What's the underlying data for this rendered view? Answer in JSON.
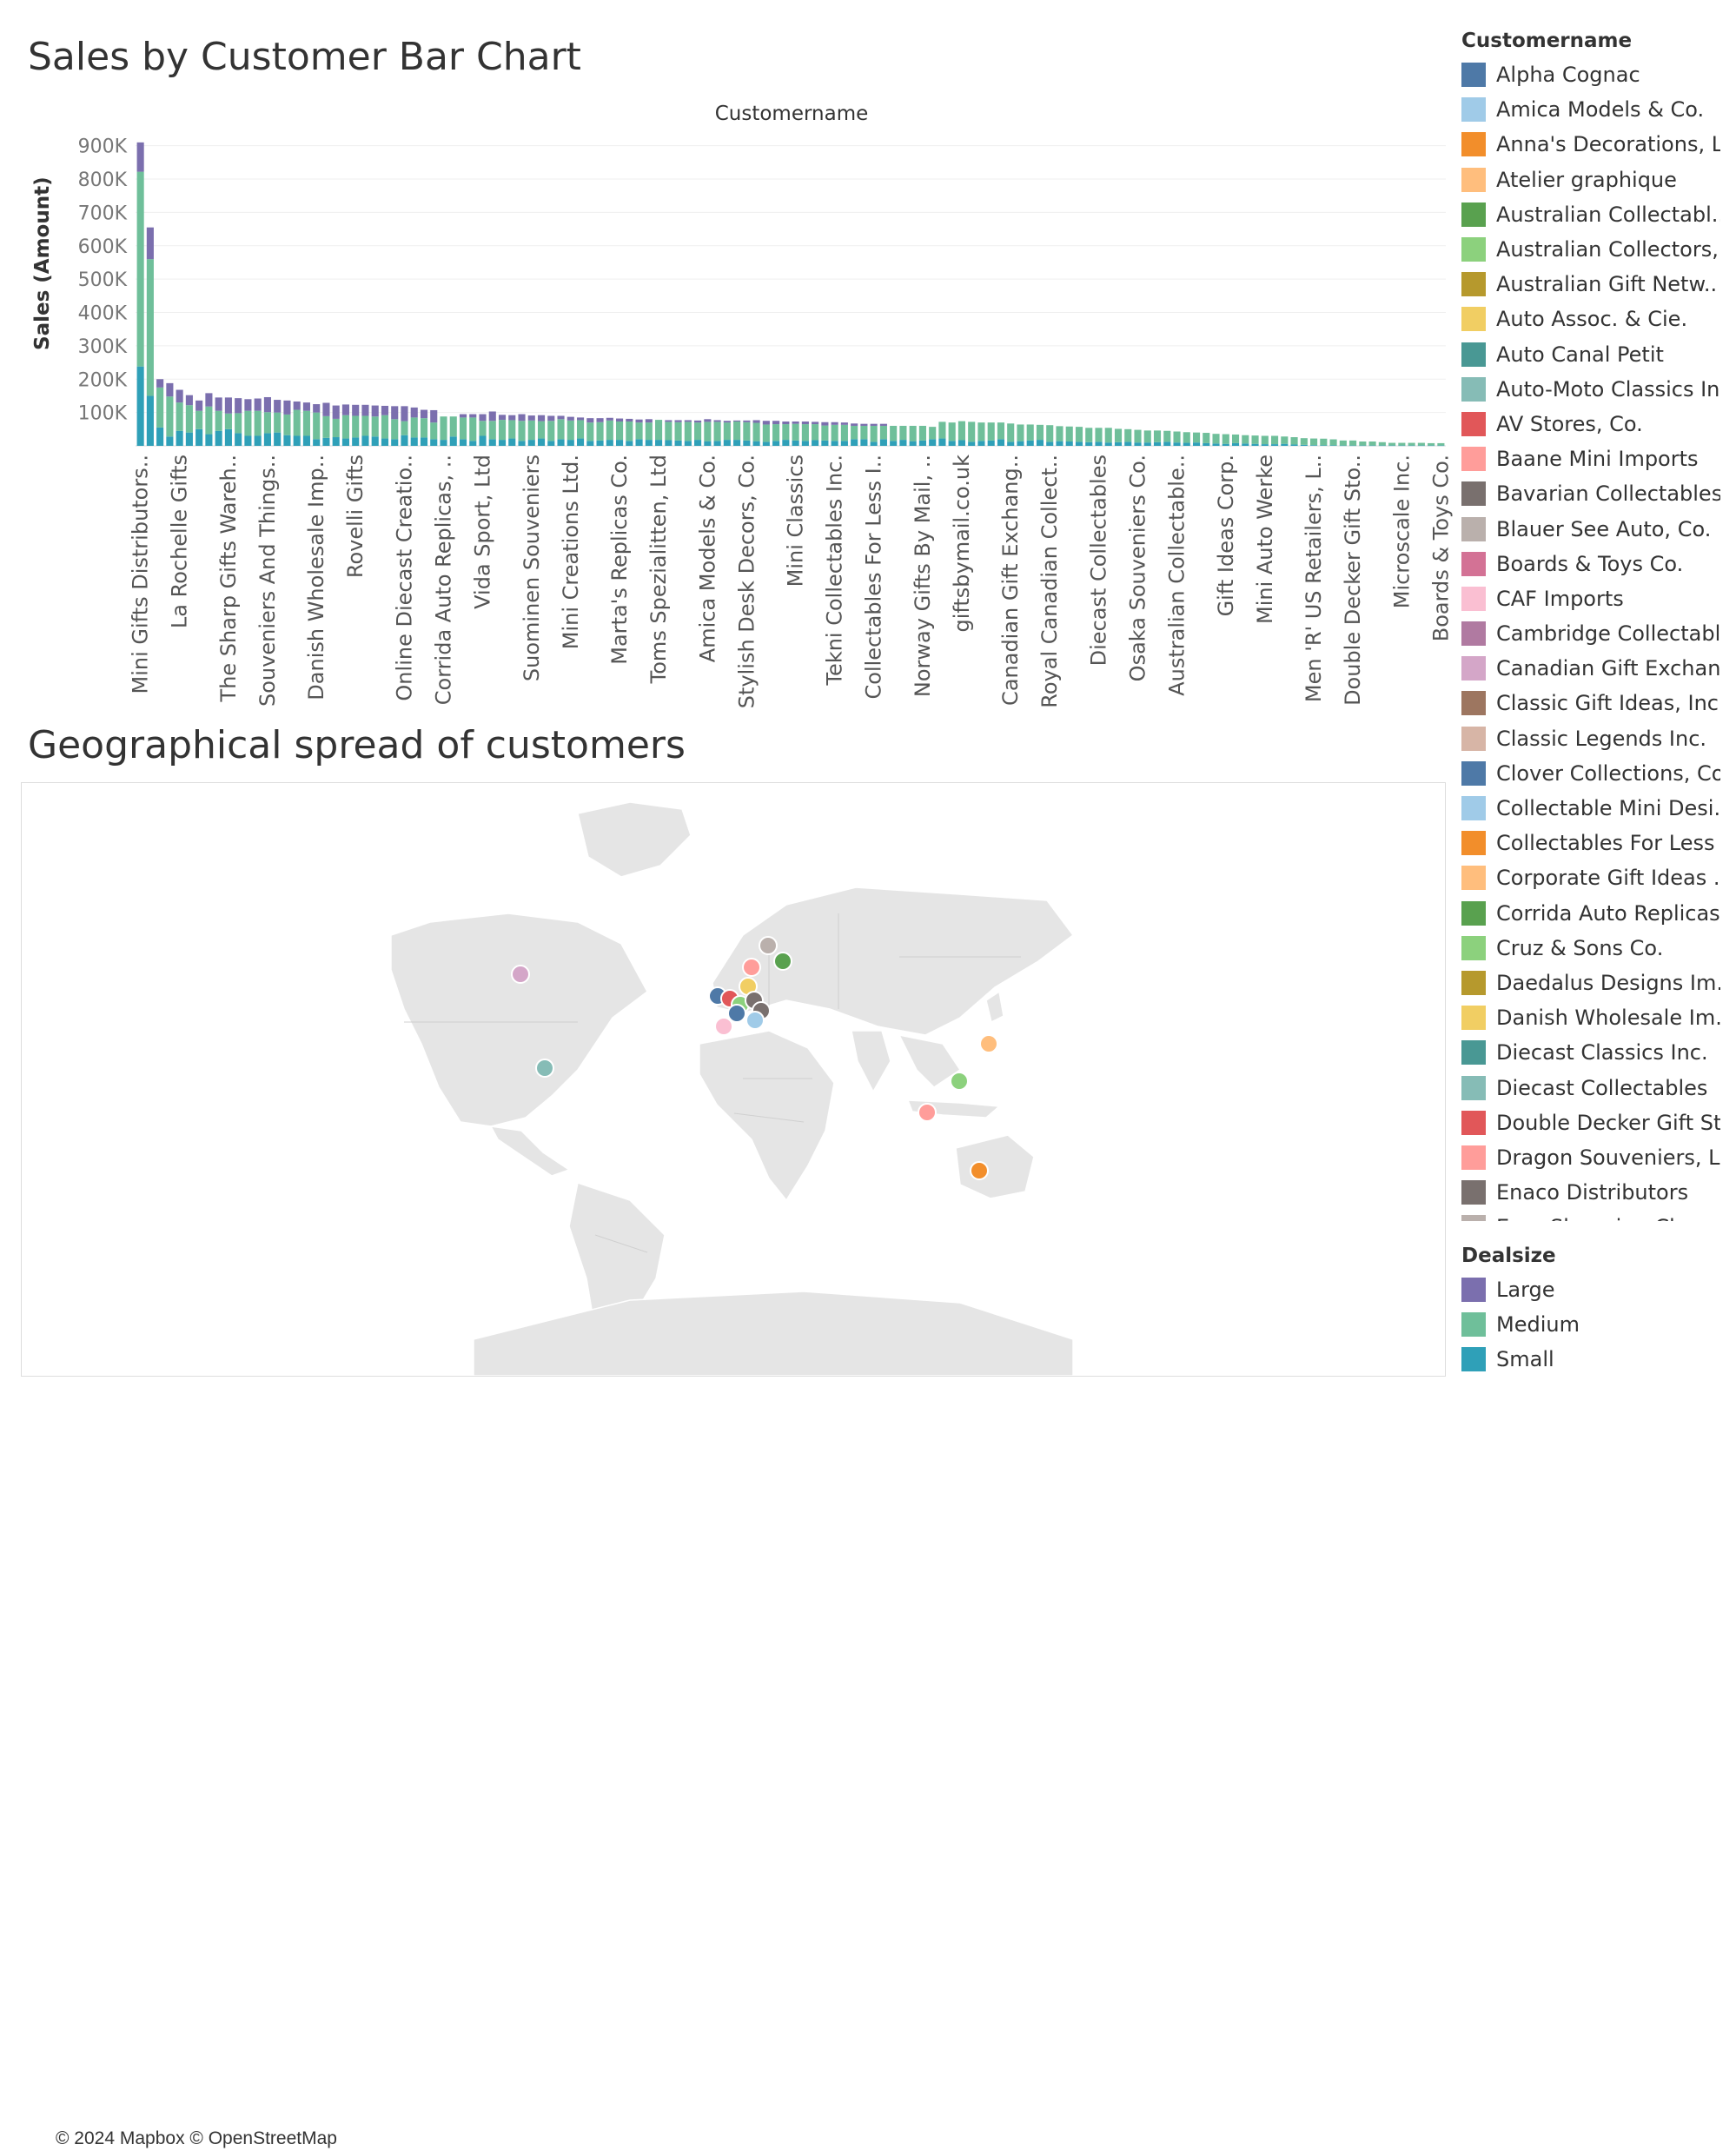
{
  "bar_title": "Sales by Customer Bar Chart",
  "map_title": "Geographical spread of customers",
  "column_header": "Customername",
  "y_axis_label": "Sales (Amount)",
  "attribution": "© 2024 Mapbox © OpenStreetMap",
  "dealsize_colors": {
    "Large": "#7b6fae",
    "Medium": "#6fbf9a",
    "Small": "#2fa0b8"
  },
  "chart_data": {
    "type": "bar",
    "stacked": true,
    "title": "Sales by Customer Bar Chart",
    "xlabel": "Customername",
    "ylabel": "Sales (Amount)",
    "ylim": [
      0,
      920000
    ],
    "yticks": [
      "100K",
      "200K",
      "300K",
      "400K",
      "500K",
      "600K",
      "700K",
      "800K",
      "900K"
    ],
    "ytick_values": [
      100000,
      200000,
      300000,
      400000,
      500000,
      600000,
      700000,
      800000,
      900000
    ],
    "x_tick_labels": [
      "Mini Gifts Distributors..",
      "La Rochelle Gifts",
      "The Sharp Gifts Wareh..",
      "Souveniers And Things..",
      "Danish Wholesale Imp..",
      "Rovelli Gifts",
      "Online Diecast Creatio..",
      "Corrida Auto Replicas, ..",
      "Vida Sport, Ltd",
      "Suominen Souveniers",
      "Mini Creations Ltd.",
      "Marta's Replicas Co.",
      "Toms Spezialitten, Ltd",
      "Amica Models & Co.",
      "Stylish Desk Decors, Co.",
      "Mini Classics",
      "Tekni Collectables Inc.",
      "Collectables For Less I..",
      "Norway Gifts By Mail, ..",
      "giftsbymail.co.uk",
      "Canadian Gift Exchang..",
      "Royal Canadian Collect..",
      "Diecast Collectables",
      "Osaka Souveniers Co.",
      "Australian Collectable..",
      "Gift Ideas Corp.",
      "Mini Auto Werke",
      "Men 'R' US Retailers, L..",
      "Double Decker Gift Sto..",
      "Microscale Inc.",
      "Boards & Toys Co."
    ],
    "series": [
      {
        "name": "Small",
        "values": [
          238000,
          150000,
          55000,
          28000,
          45000,
          40000,
          50000,
          35000,
          45000,
          50000,
          38000,
          30000,
          30000,
          38000,
          40000,
          32000,
          30000,
          30000,
          20000,
          24000,
          26000,
          22000,
          25000,
          30000,
          28000,
          22000,
          20000,
          32000,
          25000,
          25000,
          20000,
          18000,
          28000,
          20000,
          15000,
          30000,
          20000,
          18000,
          22000,
          15000,
          18000,
          22000,
          15000,
          20000,
          18000,
          22000,
          15000,
          16000,
          18000,
          18000,
          15000,
          20000,
          18000,
          18000,
          17000,
          16000,
          15000,
          18000,
          14000,
          15000,
          18000,
          18000,
          16000,
          14000,
          12000,
          15000,
          18000,
          16000,
          15000,
          17000,
          16000,
          15000,
          15000,
          20000,
          20000,
          12000,
          20000,
          15000,
          18000,
          14000,
          16000,
          20000,
          22000,
          15000,
          17000,
          12000,
          15000,
          16000,
          20000,
          12000,
          14000,
          16000,
          18000,
          12000,
          14000,
          13000,
          12000,
          11000,
          12000,
          10000,
          11000,
          12000,
          10000,
          10000,
          11000,
          12000,
          10000,
          9000,
          10000,
          8000,
          7000,
          6000,
          8000,
          7000,
          6000,
          5000,
          5000,
          6000,
          4000,
          3000,
          2000,
          1500,
          1500,
          1000,
          1000,
          1000,
          1000,
          1000,
          1000,
          1000,
          1000,
          1000,
          1000,
          1000
        ]
      },
      {
        "name": "Medium",
        "values": [
          584000,
          410000,
          120000,
          120000,
          85000,
          82000,
          55000,
          83000,
          60000,
          47000,
          60000,
          75000,
          75000,
          63000,
          60000,
          62000,
          78000,
          75000,
          80000,
          65000,
          55000,
          70000,
          65000,
          60000,
          60000,
          70000,
          60000,
          42000,
          60000,
          58000,
          50000,
          70000,
          60000,
          65000,
          70000,
          45000,
          55000,
          60000,
          55000,
          60000,
          58000,
          52000,
          60000,
          60000,
          58000,
          55000,
          55000,
          55000,
          58000,
          55000,
          58000,
          50000,
          52000,
          60000,
          55000,
          55000,
          57000,
          52000,
          58000,
          57000,
          52000,
          55000,
          55000,
          55000,
          52000,
          50000,
          47000,
          50000,
          50000,
          48000,
          45000,
          48000,
          48000,
          40000,
          40000,
          48000,
          40000,
          45000,
          42000,
          46000,
          44000,
          37000,
          50000,
          55000,
          57000,
          60000,
          55000,
          54000,
          50000,
          55000,
          50000,
          48000,
          45000,
          50000,
          45000,
          45000,
          45000,
          43000,
          42000,
          44000,
          40000,
          38000,
          38000,
          36000,
          35000,
          33000,
          33000,
          32000,
          30000,
          31000,
          29000,
          29000,
          26000,
          25000,
          25000,
          25000,
          25000,
          22000,
          22000,
          20000,
          20000,
          20000,
          18000,
          15000,
          15000,
          12000,
          12000,
          10000,
          8000,
          8000,
          8000,
          8000,
          7000,
          7000
        ]
      },
      {
        "name": "Large",
        "values": [
          88000,
          95000,
          25000,
          40000,
          38000,
          30000,
          31000,
          40000,
          40000,
          48000,
          45000,
          35000,
          37000,
          45000,
          38000,
          42000,
          25000,
          25000,
          25000,
          40000,
          40000,
          32000,
          33000,
          33000,
          33000,
          28000,
          39000,
          45000,
          30000,
          25000,
          37000,
          0,
          0,
          10000,
          10000,
          20000,
          28000,
          15000,
          15000,
          20000,
          15000,
          18000,
          15000,
          10000,
          11000,
          8000,
          13000,
          12000,
          8000,
          9000,
          8000,
          9000,
          10000,
          0,
          5000,
          6000,
          5000,
          6000,
          8000,
          5000,
          5000,
          3000,
          5000,
          8000,
          11000,
          10000,
          8000,
          7000,
          8000,
          7000,
          10000,
          8000,
          7000,
          7000,
          6000,
          6000,
          6000,
          0,
          0,
          0,
          0,
          0,
          0,
          0,
          0,
          0,
          0,
          0,
          0,
          0,
          0,
          0,
          0,
          0,
          0,
          0,
          0,
          0,
          0,
          0,
          0,
          0,
          0,
          0,
          0,
          0,
          0,
          0,
          0,
          0,
          0,
          0,
          0,
          0,
          0,
          0,
          0,
          0,
          0,
          0,
          0,
          0,
          0,
          0,
          0,
          0,
          0,
          0,
          0,
          0,
          0,
          0,
          0,
          0
        ]
      }
    ]
  },
  "customer_legend": {
    "title": "Customername",
    "items": [
      {
        "label": "Alpha Cognac",
        "color": "#4e79a7"
      },
      {
        "label": "Amica Models & Co.",
        "color": "#a0cbe8"
      },
      {
        "label": "Anna's Decorations, L..",
        "color": "#f28e2b"
      },
      {
        "label": "Atelier graphique",
        "color": "#ffbe7d"
      },
      {
        "label": "Australian Collectabl..",
        "color": "#59a14f"
      },
      {
        "label": "Australian Collectors,..",
        "color": "#8cd17d"
      },
      {
        "label": "Australian Gift Netw..",
        "color": "#b6992d"
      },
      {
        "label": "Auto Assoc. & Cie.",
        "color": "#f1ce63"
      },
      {
        "label": "Auto Canal Petit",
        "color": "#499894"
      },
      {
        "label": "Auto-Moto Classics In..",
        "color": "#86bcb6"
      },
      {
        "label": "AV Stores, Co.",
        "color": "#e15759"
      },
      {
        "label": "Baane Mini Imports",
        "color": "#ff9d9a"
      },
      {
        "label": "Bavarian Collectables..",
        "color": "#79706e"
      },
      {
        "label": "Blauer See Auto, Co.",
        "color": "#bab0ac"
      },
      {
        "label": "Boards & Toys Co.",
        "color": "#d37295"
      },
      {
        "label": "CAF Imports",
        "color": "#fabfd2"
      },
      {
        "label": "Cambridge Collectabl..",
        "color": "#b07aa1"
      },
      {
        "label": "Canadian Gift Exchan..",
        "color": "#d4a6c8"
      },
      {
        "label": "Classic Gift Ideas, Inc",
        "color": "#9d7660"
      },
      {
        "label": "Classic Legends Inc.",
        "color": "#d7b5a6"
      },
      {
        "label": "Clover Collections, Co.",
        "color": "#4e79a7"
      },
      {
        "label": "Collectable Mini Desi..",
        "color": "#a0cbe8"
      },
      {
        "label": "Collectables For Less ..",
        "color": "#f28e2b"
      },
      {
        "label": "Corporate Gift Ideas ..",
        "color": "#ffbe7d"
      },
      {
        "label": "Corrida Auto Replicas..",
        "color": "#59a14f"
      },
      {
        "label": "Cruz & Sons Co.",
        "color": "#8cd17d"
      },
      {
        "label": "Daedalus Designs Im..",
        "color": "#b6992d"
      },
      {
        "label": "Danish Wholesale Im..",
        "color": "#f1ce63"
      },
      {
        "label": "Diecast Classics Inc.",
        "color": "#499894"
      },
      {
        "label": "Diecast Collectables",
        "color": "#86bcb6"
      },
      {
        "label": "Double Decker Gift St..",
        "color": "#e15759"
      },
      {
        "label": "Dragon Souveniers, L..",
        "color": "#ff9d9a"
      },
      {
        "label": "Enaco Distributors",
        "color": "#79706e"
      },
      {
        "label": "Euro Shopping Chann..",
        "color": "#bab0ac"
      }
    ]
  },
  "dealsize_legend": {
    "title": "Dealsize",
    "items": [
      {
        "label": "Large",
        "color": "#7b6fae"
      },
      {
        "label": "Medium",
        "color": "#6fbf9a"
      },
      {
        "label": "Small",
        "color": "#2fa0b8"
      }
    ]
  },
  "map_markers": [
    {
      "region": "Canada",
      "color": "#d4a6c8"
    },
    {
      "region": "USA",
      "color": "#86bcb6"
    },
    {
      "region": "Finland",
      "color": "#bab0ac"
    },
    {
      "region": "Russia",
      "color": "#59a14f"
    },
    {
      "region": "Norway",
      "color": "#ff9d9a"
    },
    {
      "region": "Denmark",
      "color": "#f1ce63"
    },
    {
      "region": "UK",
      "color": "#4e79a7"
    },
    {
      "region": "Belgium",
      "color": "#e15759"
    },
    {
      "region": "Germany",
      "color": "#8cd17d"
    },
    {
      "region": "Austria",
      "color": "#79706e"
    },
    {
      "region": "Switzerland",
      "color": "#79706e"
    },
    {
      "region": "France",
      "color": "#4e79a7"
    },
    {
      "region": "Italy",
      "color": "#a0cbe8"
    },
    {
      "region": "Spain",
      "color": "#fabfd2"
    },
    {
      "region": "Japan",
      "color": "#ffbe7d"
    },
    {
      "region": "Philippines",
      "color": "#8cd17d"
    },
    {
      "region": "Singapore",
      "color": "#ff9d9a"
    },
    {
      "region": "Australia",
      "color": "#f28e2b"
    }
  ]
}
